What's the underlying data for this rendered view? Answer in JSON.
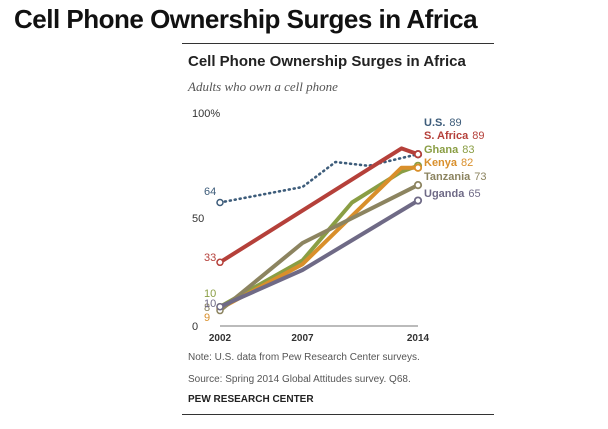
{
  "page": {
    "title": "Cell Phone Ownership Surges in Africa"
  },
  "chart_data": {
    "type": "line",
    "title": "Cell Phone Ownership Surges in Africa",
    "subtitle": "Adults who own a cell phone",
    "xlabel": "",
    "ylabel": "",
    "xlim": [
      2002,
      2014
    ],
    "ylim": [
      0,
      100
    ],
    "x_ticks": [
      {
        "value": 2002,
        "label": "2002"
      },
      {
        "value": 2007,
        "label": "2007"
      },
      {
        "value": 2014,
        "label": "2014"
      }
    ],
    "y_ticks": [
      {
        "value": 100,
        "label": "100%"
      },
      {
        "value": 50,
        "label": "50"
      },
      {
        "value": 0,
        "label": "0"
      }
    ],
    "grid": false,
    "legend": "direct labels at line ends",
    "series": [
      {
        "name": "U.S.",
        "end_label": "89",
        "color": "#3d5c7a",
        "dotted": true,
        "start_label": "64",
        "points": [
          [
            2002,
            64
          ],
          [
            2007,
            72
          ],
          [
            2009,
            85
          ],
          [
            2011,
            83
          ],
          [
            2014,
            89
          ]
        ]
      },
      {
        "name": "S. Africa",
        "end_label": "89",
        "color": "#b5403a",
        "start_label": "33",
        "points": [
          [
            2002,
            33
          ],
          [
            2013,
            92
          ],
          [
            2014,
            89
          ]
        ]
      },
      {
        "name": "Ghana",
        "end_label": "83",
        "color": "#8a9e44",
        "start_label": "10",
        "points": [
          [
            2002,
            10
          ],
          [
            2007,
            34
          ],
          [
            2010,
            64
          ],
          [
            2013,
            80
          ],
          [
            2014,
            83
          ]
        ]
      },
      {
        "name": "Kenya",
        "end_label": "82",
        "color": "#d98f2b",
        "start_label": "9",
        "points": [
          [
            2002,
            9
          ],
          [
            2007,
            32
          ],
          [
            2013,
            82
          ],
          [
            2014,
            82
          ]
        ]
      },
      {
        "name": "Tanzania",
        "end_label": "73",
        "color": "#8c8460",
        "start_label": "8",
        "points": [
          [
            2002,
            8
          ],
          [
            2007,
            43
          ],
          [
            2014,
            73
          ]
        ]
      },
      {
        "name": "Uganda",
        "end_label": "65",
        "color": "#6f6a86",
        "start_label": "10",
        "points": [
          [
            2002,
            10
          ],
          [
            2007,
            29
          ],
          [
            2014,
            65
          ]
        ]
      }
    ],
    "notes": {
      "note": "Note: U.S. data from Pew Research Center surveys.",
      "source": "Source: Spring 2014 Global Attitudes survey. Q68.",
      "org": "PEW RESEARCH CENTER"
    }
  }
}
